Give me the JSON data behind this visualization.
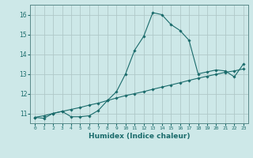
{
  "title": "",
  "xlabel": "Humidex (Indice chaleur)",
  "ylabel": "",
  "background_color": "#cde8e8",
  "grid_color": "#b0c8c8",
  "line_color": "#1a6b6b",
  "xlim": [
    -0.5,
    23.5
  ],
  "ylim": [
    10.5,
    16.5
  ],
  "yticks": [
    11,
    12,
    13,
    14,
    15,
    16
  ],
  "xtick_labels": [
    "0",
    "1",
    "2",
    "3",
    "4",
    "5",
    "6",
    "7",
    "8",
    "9",
    "10",
    "11",
    "12",
    "13",
    "14",
    "15",
    "16",
    "17",
    "18",
    "19",
    "20",
    "21",
    "22",
    "23"
  ],
  "x": [
    0,
    1,
    2,
    3,
    4,
    5,
    6,
    7,
    8,
    9,
    10,
    11,
    12,
    13,
    14,
    15,
    16,
    17,
    18,
    19,
    20,
    21,
    22,
    23
  ],
  "y_main": [
    10.8,
    10.75,
    11.0,
    11.1,
    10.83,
    10.83,
    10.88,
    11.15,
    11.65,
    12.1,
    13.0,
    14.2,
    14.9,
    16.1,
    16.0,
    15.5,
    15.2,
    14.7,
    13.0,
    13.1,
    13.2,
    13.15,
    12.85,
    13.5
  ],
  "y_smooth": [
    10.8,
    10.88,
    11.0,
    11.1,
    11.2,
    11.3,
    11.42,
    11.52,
    11.65,
    11.78,
    11.9,
    12.0,
    12.1,
    12.22,
    12.33,
    12.44,
    12.55,
    12.67,
    12.78,
    12.88,
    12.98,
    13.08,
    13.15,
    13.25
  ]
}
